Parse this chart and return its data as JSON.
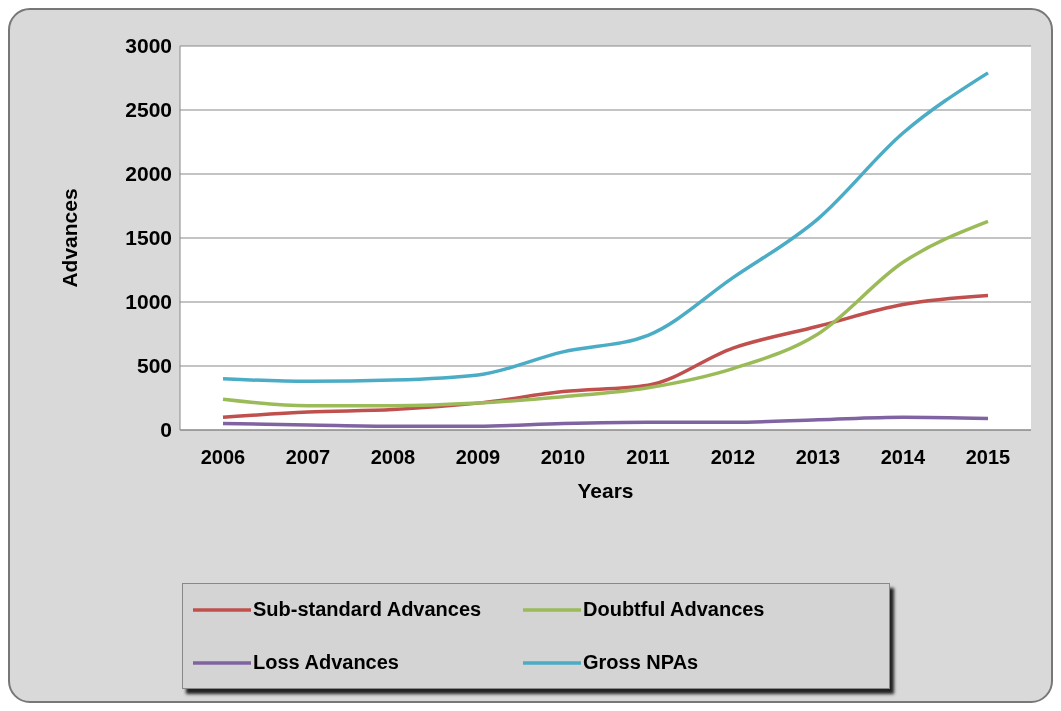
{
  "chart_data": {
    "type": "line",
    "xlabel": "Years",
    "ylabel": "Advances",
    "categories": [
      "2006",
      "2007",
      "2008",
      "2009",
      "2010",
      "2011",
      "2012",
      "2013",
      "2014",
      "2015"
    ],
    "series": [
      {
        "name": "Sub-standard Advances",
        "color": "#c0504d",
        "values": [
          100,
          140,
          160,
          210,
          300,
          350,
          640,
          810,
          980,
          1050
        ]
      },
      {
        "name": "Doubtful Advances",
        "color": "#9bbb59",
        "values": [
          240,
          190,
          190,
          210,
          260,
          330,
          480,
          750,
          1310,
          1630
        ]
      },
      {
        "name": "Loss Advances",
        "color": "#8064a2",
        "values": [
          50,
          40,
          30,
          30,
          50,
          60,
          60,
          80,
          100,
          90
        ]
      },
      {
        "name": "Gross NPAs",
        "color": "#4bacc6",
        "values": [
          400,
          380,
          390,
          430,
          610,
          740,
          1190,
          1650,
          2320,
          2790
        ]
      }
    ],
    "ylim": [
      0,
      3000
    ],
    "yticks": [
      0,
      500,
      1000,
      1500,
      2000,
      2500,
      3000
    ],
    "grid": "y",
    "legend": "bottom",
    "marker": "none",
    "line_style": "solid"
  }
}
